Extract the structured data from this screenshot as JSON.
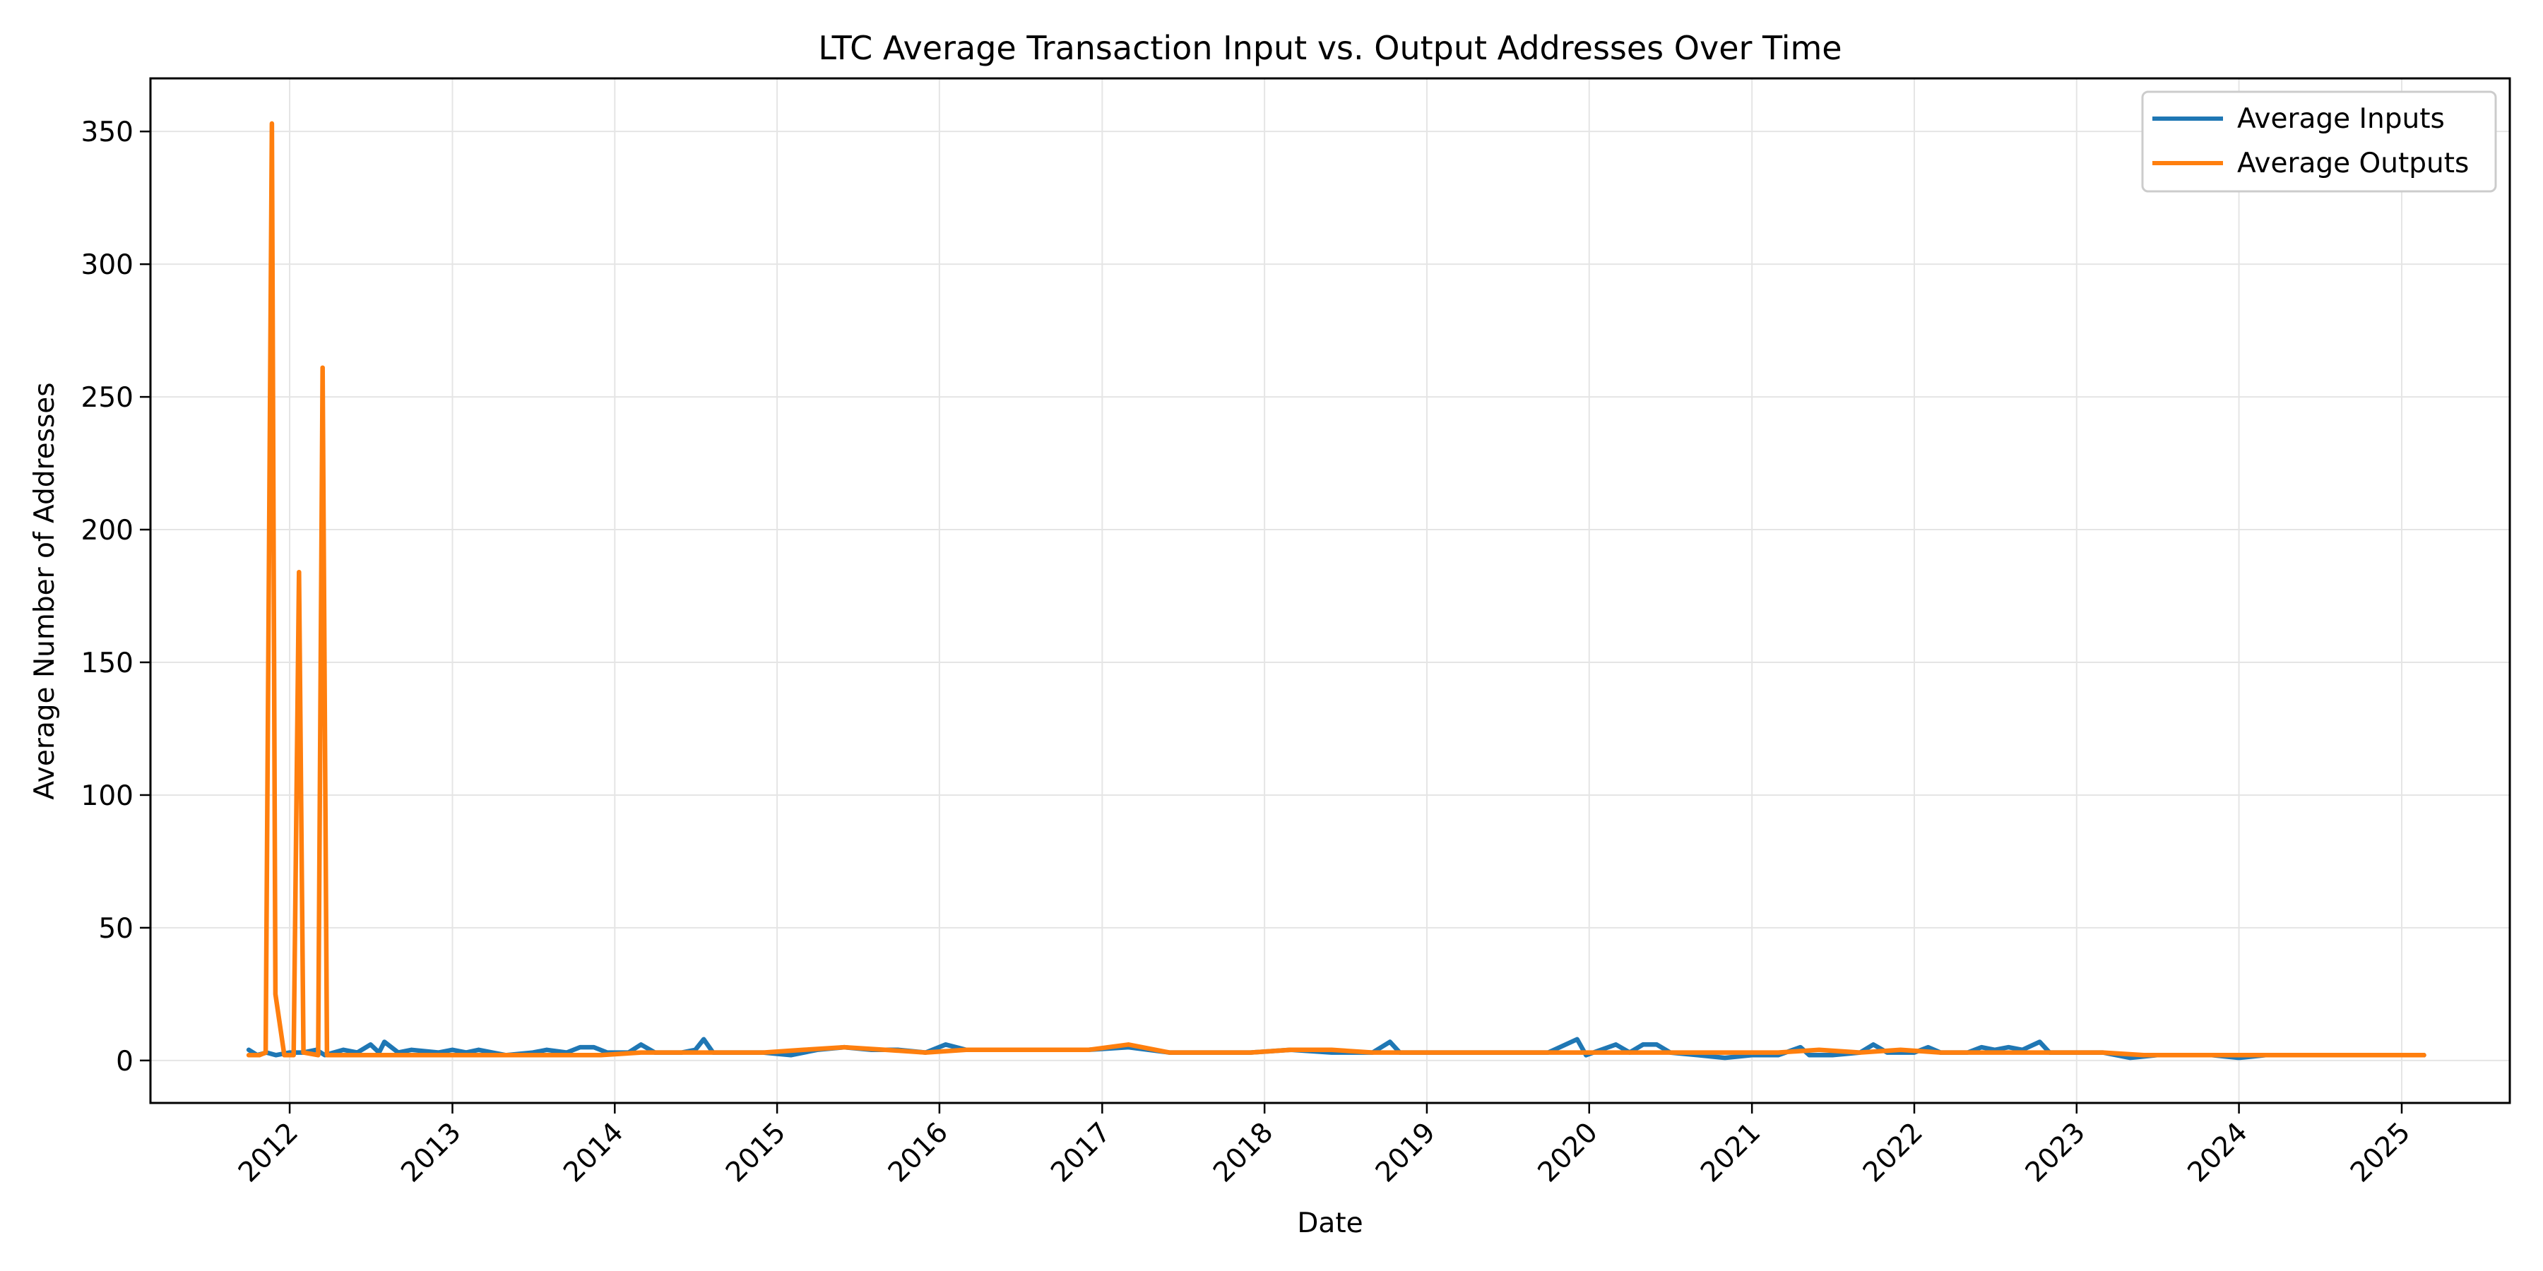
{
  "chart_data": {
    "type": "line",
    "title": "LTC Average  Transaction Input vs. Output Addresses Over Time",
    "xlabel": "Date",
    "ylabel": "Average Number of Addresses",
    "x_range": [
      "2011-02-22",
      "2025-09-01"
    ],
    "ylim": [
      -16,
      370
    ],
    "x_ticks": [
      "2012",
      "2013",
      "2014",
      "2015",
      "2016",
      "2017",
      "2018",
      "2019",
      "2020",
      "2021",
      "2022",
      "2023",
      "2024",
      "2025"
    ],
    "y_ticks": [
      0,
      50,
      100,
      150,
      200,
      250,
      300,
      350
    ],
    "grid": true,
    "legend_position": "top-right",
    "series": [
      {
        "name": "Average Inputs",
        "color": "#1f77b4",
        "points": [
          [
            "2011-10-01",
            4
          ],
          [
            "2011-10-20",
            2
          ],
          [
            "2011-11-10",
            3
          ],
          [
            "2011-12-01",
            2
          ],
          [
            "2012-01-01",
            3
          ],
          [
            "2012-02-01",
            3
          ],
          [
            "2012-03-01",
            4
          ],
          [
            "2012-03-20",
            2
          ],
          [
            "2012-05-01",
            4
          ],
          [
            "2012-06-01",
            3
          ],
          [
            "2012-07-01",
            6
          ],
          [
            "2012-07-20",
            3
          ],
          [
            "2012-08-01",
            7
          ],
          [
            "2012-09-01",
            3
          ],
          [
            "2012-10-01",
            4
          ],
          [
            "2012-12-01",
            3
          ],
          [
            "2013-01-01",
            4
          ],
          [
            "2013-02-01",
            3
          ],
          [
            "2013-03-01",
            4
          ],
          [
            "2013-05-01",
            2
          ],
          [
            "2013-07-01",
            3
          ],
          [
            "2013-08-01",
            4
          ],
          [
            "2013-09-15",
            3
          ],
          [
            "2013-10-15",
            5
          ],
          [
            "2013-11-15",
            5
          ],
          [
            "2013-12-15",
            3
          ],
          [
            "2014-02-01",
            3
          ],
          [
            "2014-03-01",
            6
          ],
          [
            "2014-04-01",
            3
          ],
          [
            "2014-06-01",
            3
          ],
          [
            "2014-07-01",
            4
          ],
          [
            "2014-07-20",
            8
          ],
          [
            "2014-08-10",
            3
          ],
          [
            "2014-10-01",
            3
          ],
          [
            "2014-12-01",
            3
          ],
          [
            "2015-02-01",
            2
          ],
          [
            "2015-04-01",
            4
          ],
          [
            "2015-06-01",
            5
          ],
          [
            "2015-08-01",
            4
          ],
          [
            "2015-10-01",
            4
          ],
          [
            "2015-12-01",
            3
          ],
          [
            "2016-01-15",
            6
          ],
          [
            "2016-03-01",
            4
          ],
          [
            "2016-06-01",
            4
          ],
          [
            "2016-09-01",
            4
          ],
          [
            "2016-12-01",
            4
          ],
          [
            "2017-03-01",
            5
          ],
          [
            "2017-06-01",
            3
          ],
          [
            "2017-09-01",
            3
          ],
          [
            "2017-12-01",
            3
          ],
          [
            "2018-03-01",
            4
          ],
          [
            "2018-06-01",
            3
          ],
          [
            "2018-09-01",
            3
          ],
          [
            "2018-10-10",
            7
          ],
          [
            "2018-11-01",
            3
          ],
          [
            "2019-01-01",
            3
          ],
          [
            "2019-04-01",
            3
          ],
          [
            "2019-07-01",
            3
          ],
          [
            "2019-10-01",
            3
          ],
          [
            "2019-12-05",
            8
          ],
          [
            "2019-12-25",
            2
          ],
          [
            "2020-03-01",
            6
          ],
          [
            "2020-04-01",
            3
          ],
          [
            "2020-05-01",
            6
          ],
          [
            "2020-06-01",
            6
          ],
          [
            "2020-07-01",
            3
          ],
          [
            "2020-09-01",
            2
          ],
          [
            "2020-11-01",
            1
          ],
          [
            "2021-01-01",
            2
          ],
          [
            "2021-03-01",
            2
          ],
          [
            "2021-04-20",
            5
          ],
          [
            "2021-05-10",
            2
          ],
          [
            "2021-07-01",
            2
          ],
          [
            "2021-09-01",
            3
          ],
          [
            "2021-10-01",
            6
          ],
          [
            "2021-11-01",
            3
          ],
          [
            "2022-01-01",
            3
          ],
          [
            "2022-02-01",
            5
          ],
          [
            "2022-03-01",
            3
          ],
          [
            "2022-05-01",
            3
          ],
          [
            "2022-06-01",
            5
          ],
          [
            "2022-07-01",
            4
          ],
          [
            "2022-08-01",
            5
          ],
          [
            "2022-09-01",
            4
          ],
          [
            "2022-10-10",
            7
          ],
          [
            "2022-11-01",
            3
          ],
          [
            "2023-01-01",
            3
          ],
          [
            "2023-03-01",
            3
          ],
          [
            "2023-05-01",
            1
          ],
          [
            "2023-07-01",
            2
          ],
          [
            "2023-09-01",
            2
          ],
          [
            "2023-11-01",
            2
          ],
          [
            "2024-01-01",
            1
          ],
          [
            "2024-03-01",
            2
          ],
          [
            "2024-06-01",
            2
          ],
          [
            "2024-09-01",
            2
          ],
          [
            "2024-12-01",
            2
          ],
          [
            "2025-02-20",
            2
          ]
        ]
      },
      {
        "name": "Average Outputs",
        "color": "#ff7f0e",
        "points": [
          [
            "2011-10-01",
            2
          ],
          [
            "2011-10-25",
            2
          ],
          [
            "2011-11-08",
            3
          ],
          [
            "2011-11-22",
            353
          ],
          [
            "2011-11-30",
            25
          ],
          [
            "2011-12-20",
            2
          ],
          [
            "2012-01-10",
            2
          ],
          [
            "2012-01-22",
            184
          ],
          [
            "2012-02-01",
            3
          ],
          [
            "2012-03-05",
            2
          ],
          [
            "2012-03-15",
            261
          ],
          [
            "2012-03-25",
            2
          ],
          [
            "2012-06-01",
            2
          ],
          [
            "2012-09-01",
            2
          ],
          [
            "2012-12-01",
            2
          ],
          [
            "2013-03-01",
            2
          ],
          [
            "2013-06-01",
            2
          ],
          [
            "2013-09-01",
            2
          ],
          [
            "2013-12-01",
            2
          ],
          [
            "2014-03-01",
            3
          ],
          [
            "2014-06-01",
            3
          ],
          [
            "2014-09-01",
            3
          ],
          [
            "2014-12-01",
            3
          ],
          [
            "2015-03-01",
            4
          ],
          [
            "2015-06-01",
            5
          ],
          [
            "2015-09-01",
            4
          ],
          [
            "2015-12-01",
            3
          ],
          [
            "2016-03-01",
            4
          ],
          [
            "2016-06-01",
            4
          ],
          [
            "2016-09-01",
            4
          ],
          [
            "2016-12-01",
            4
          ],
          [
            "2017-03-01",
            6
          ],
          [
            "2017-06-01",
            3
          ],
          [
            "2017-09-01",
            3
          ],
          [
            "2017-12-01",
            3
          ],
          [
            "2018-03-01",
            4
          ],
          [
            "2018-06-01",
            4
          ],
          [
            "2018-09-01",
            3
          ],
          [
            "2018-12-01",
            3
          ],
          [
            "2019-03-01",
            3
          ],
          [
            "2019-06-01",
            3
          ],
          [
            "2019-09-01",
            3
          ],
          [
            "2019-12-01",
            3
          ],
          [
            "2020-03-01",
            3
          ],
          [
            "2020-06-01",
            3
          ],
          [
            "2020-09-01",
            3
          ],
          [
            "2020-12-01",
            3
          ],
          [
            "2021-03-01",
            3
          ],
          [
            "2021-06-01",
            4
          ],
          [
            "2021-09-01",
            3
          ],
          [
            "2021-12-01",
            4
          ],
          [
            "2022-03-01",
            3
          ],
          [
            "2022-06-01",
            3
          ],
          [
            "2022-09-01",
            3
          ],
          [
            "2022-12-01",
            3
          ],
          [
            "2023-03-01",
            3
          ],
          [
            "2023-06-01",
            2
          ],
          [
            "2023-09-01",
            2
          ],
          [
            "2023-12-01",
            2
          ],
          [
            "2024-03-01",
            2
          ],
          [
            "2024-06-01",
            2
          ],
          [
            "2024-09-01",
            2
          ],
          [
            "2024-12-01",
            2
          ],
          [
            "2025-02-20",
            2
          ]
        ]
      }
    ]
  }
}
